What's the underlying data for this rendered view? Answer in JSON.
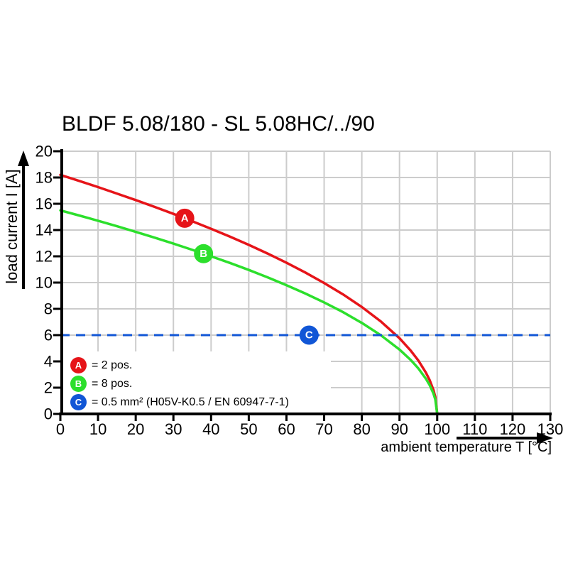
{
  "title": "BLDF 5.08/180 - SL 5.08HC/../90",
  "colors": {
    "curve_a_red": "#e61419",
    "curve_b_green": "#2cdf2c",
    "line_c_blue": "#1156d6",
    "grid": "#cccccc",
    "axis": "#000000",
    "background": "#ffffff"
  },
  "chart_data": {
    "type": "line",
    "title": "BLDF 5.08/180 - SL 5.08HC/../90",
    "xlabel": "ambient temperature T [°C]",
    "ylabel": "load current I [A]",
    "xlim": [
      0,
      130
    ],
    "ylim": [
      0,
      20
    ],
    "x_ticks": [
      0,
      10,
      20,
      30,
      40,
      50,
      60,
      70,
      80,
      90,
      100,
      110,
      120,
      130
    ],
    "y_ticks": [
      0,
      2,
      4,
      6,
      8,
      10,
      12,
      14,
      16,
      18,
      20
    ],
    "grid": true,
    "series": [
      {
        "id": "A",
        "name": "2 pos.",
        "color": "#e61419",
        "style": "solid",
        "x": [
          0,
          5,
          10,
          15,
          20,
          25,
          30,
          35,
          40,
          45,
          50,
          55,
          60,
          65,
          70,
          75,
          80,
          85,
          90,
          93,
          95,
          97,
          98,
          99,
          99.5,
          100
        ],
        "y": [
          18.2,
          17.74,
          17.27,
          16.78,
          16.28,
          15.76,
          15.23,
          14.67,
          14.1,
          13.5,
          12.87,
          12.21,
          11.51,
          10.77,
          9.97,
          9.1,
          8.14,
          7.05,
          5.76,
          4.81,
          4.07,
          3.15,
          2.57,
          1.82,
          1.29,
          0
        ]
      },
      {
        "id": "B",
        "name": "8 pos.",
        "color": "#2cdf2c",
        "style": "solid",
        "x": [
          0,
          5,
          10,
          15,
          20,
          25,
          30,
          35,
          40,
          45,
          50,
          55,
          60,
          65,
          70,
          75,
          80,
          85,
          90,
          93,
          95,
          97,
          98,
          99,
          99.5,
          100
        ],
        "y": [
          15.5,
          15.11,
          14.71,
          14.29,
          13.86,
          13.42,
          12.97,
          12.49,
          12.0,
          11.5,
          10.96,
          10.4,
          9.8,
          9.17,
          8.49,
          7.75,
          6.93,
          6.0,
          4.9,
          4.1,
          3.47,
          2.68,
          2.19,
          1.55,
          1.1,
          0
        ]
      },
      {
        "id": "C",
        "name": "0.5 mm² (H05V-K0.5 / EN 60947-7-1)",
        "color": "#1156d6",
        "style": "dashed",
        "constant_y": 6
      }
    ],
    "markers": [
      {
        "label": "A",
        "x": 33,
        "y": 14.9,
        "color": "#e61419"
      },
      {
        "label": "B",
        "x": 38,
        "y": 12.2,
        "color": "#2cdf2c"
      },
      {
        "label": "C",
        "x": 66,
        "y": 6.0,
        "color": "#1156d6"
      }
    ],
    "legend": {
      "position": "lower-left",
      "items": [
        {
          "id": "A",
          "color": "#e61419",
          "text": "= 2 pos."
        },
        {
          "id": "B",
          "color": "#2cdf2c",
          "text": "= 8 pos."
        },
        {
          "id": "C",
          "color": "#1156d6",
          "text": "= 0.5 mm² (H05V-K0.5 / EN 60947-7-1)"
        }
      ]
    }
  }
}
